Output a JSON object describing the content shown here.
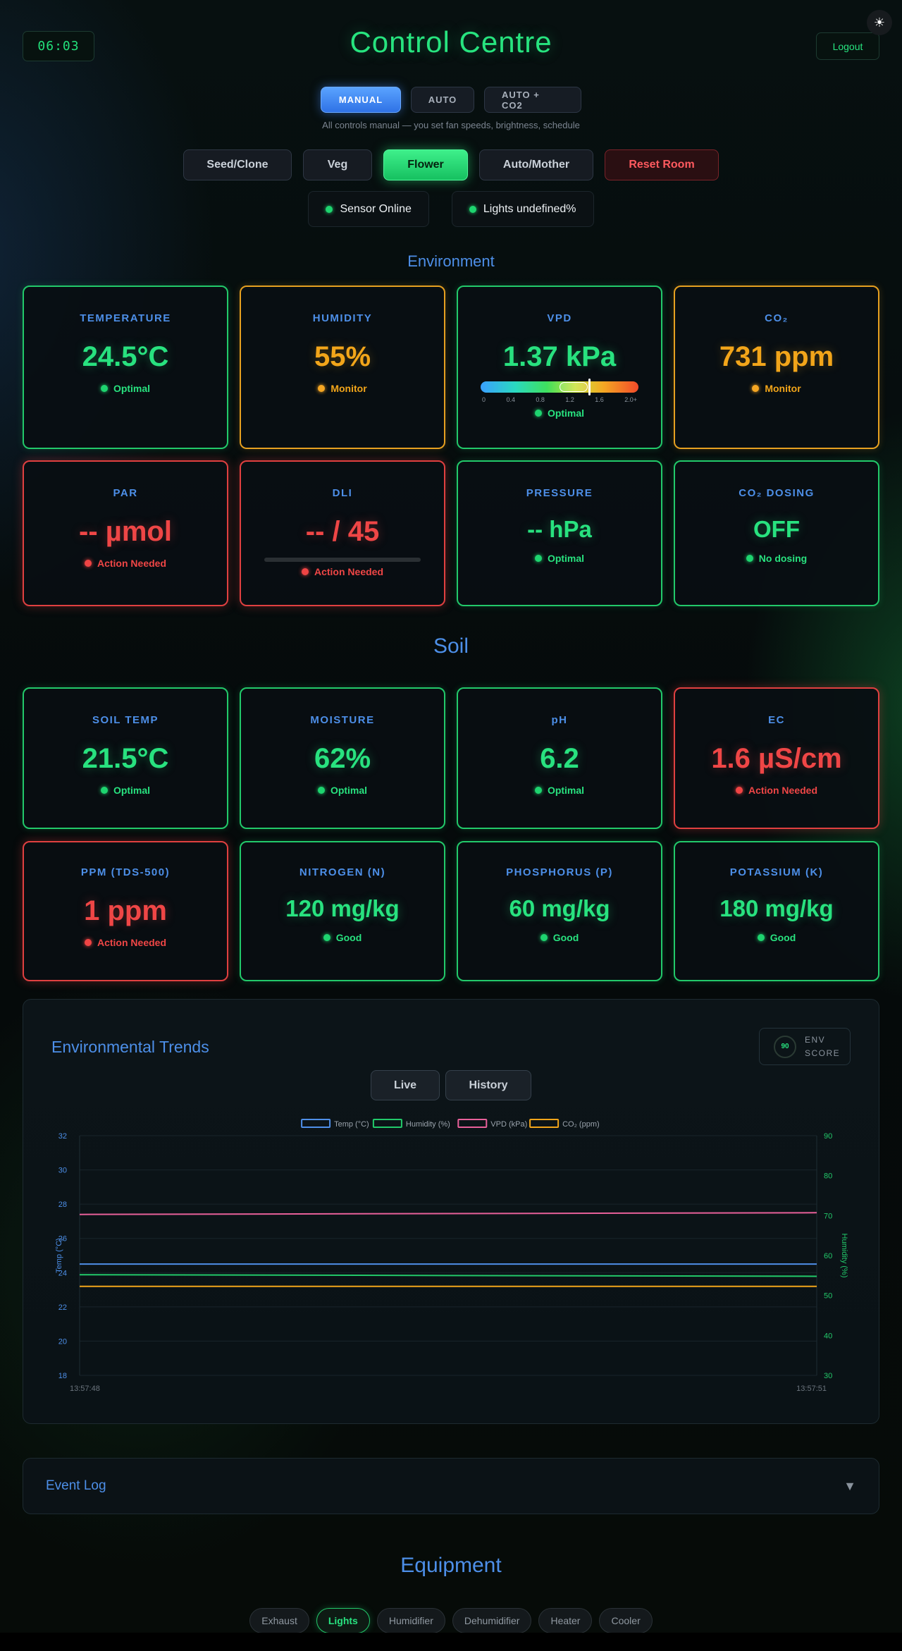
{
  "header": {
    "clock": "06:03",
    "title": "Control Centre",
    "logout_label": "Logout",
    "theme_toggle_icon": "☀"
  },
  "modes": {
    "items": [
      {
        "label": "MANUAL",
        "active": true
      },
      {
        "label": "AUTO",
        "active": false
      },
      {
        "label": "AUTO + CO2",
        "active": false
      }
    ],
    "hint": "All controls manual — you set fan speeds, brightness, schedule"
  },
  "stages": {
    "items": [
      {
        "label": "Seed/Clone"
      },
      {
        "label": "Veg"
      },
      {
        "label": "Flower"
      },
      {
        "label": "Auto/Mother"
      },
      {
        "label": "Reset Room"
      }
    ]
  },
  "status": {
    "sensor": "Sensor Online",
    "lights": "Lights undefined%"
  },
  "environment": {
    "title": "Environment",
    "cards": [
      {
        "label": "TEMPERATURE",
        "value": "24.5°C",
        "status": "Optimal"
      },
      {
        "label": "HUMIDITY",
        "value": "55%",
        "status": "Monitor"
      },
      {
        "label": "VPD",
        "value": "1.37 kPa",
        "status": "Optimal",
        "scale_ticks": [
          "0",
          "0.4",
          "0.8",
          "1.2",
          "1.6",
          "2.0+"
        ],
        "reading": 1.37
      },
      {
        "label": "CO₂",
        "value": "731 ppm",
        "status": "Monitor"
      },
      {
        "label": "PAR",
        "value": "-- µmol",
        "status": "Action Needed"
      },
      {
        "label": "DLI",
        "value": "-- / 45",
        "status": "Action Needed"
      },
      {
        "label": "PRESSURE",
        "value": "-- hPa",
        "status": "Optimal"
      },
      {
        "label": "CO₂ DOSING",
        "value": "OFF",
        "status": "No dosing"
      }
    ]
  },
  "soil": {
    "title": "Soil",
    "cards": [
      {
        "label": "SOIL TEMP",
        "value": "21.5°C",
        "status": "Optimal"
      },
      {
        "label": "MOISTURE",
        "value": "62%",
        "status": "Optimal"
      },
      {
        "label": "pH",
        "value": "6.2",
        "status": "Optimal"
      },
      {
        "label": "EC",
        "value": "1.6 µS/cm",
        "status": "Action Needed"
      },
      {
        "label": "PPM (TDS-500)",
        "value": "1 ppm",
        "status": "Action Needed"
      },
      {
        "label": "NITROGEN (N)",
        "value": "120 mg/kg",
        "status": "Good"
      },
      {
        "label": "PHOSPHORUS (P)",
        "value": "60 mg/kg",
        "status": "Good"
      },
      {
        "label": "POTASSIUM (K)",
        "value": "180 mg/kg",
        "status": "Good"
      }
    ]
  },
  "trends": {
    "title": "Environmental Trends",
    "env_score_value": "90",
    "env_score_label_1": "ENV",
    "env_score_label_2": "SCORE",
    "tabs": [
      {
        "label": "Live"
      },
      {
        "label": "History"
      }
    ]
  },
  "chart_data": {
    "type": "line",
    "x": [
      "13:57:48",
      "13:57:51"
    ],
    "ylabel_left": "Temp (°C)",
    "ylabel_right": "Humidity (%)",
    "ylim_left": [
      18,
      32
    ],
    "yticks_left": [
      "32",
      "30",
      "28",
      "26",
      "24",
      "22",
      "20",
      "18"
    ],
    "ylim_right": [
      30,
      90
    ],
    "yticks_right": [
      "90",
      "80",
      "70",
      "60",
      "50",
      "40",
      "30"
    ],
    "grid": true,
    "legend_placement": "top-center",
    "series": [
      {
        "name": "Temp (°C)",
        "axis": "left",
        "color": "#4f8fe8",
        "values": [
          24.5,
          24.5
        ]
      },
      {
        "name": "Humidity (%)",
        "axis": "right",
        "color": "#22c96a",
        "values": [
          55.2,
          54.8
        ]
      },
      {
        "name": "VPD (kPa)",
        "axis": "left",
        "color": "#e8609a",
        "values": [
          27.4,
          27.5
        ]
      },
      {
        "name": "CO₂ (ppm)",
        "axis": "left",
        "color": "#f2a51a",
        "values": [
          23.2,
          23.2
        ]
      }
    ]
  },
  "eventlog": {
    "title": "Event Log",
    "chevron": "▼"
  },
  "equipment": {
    "title": "Equipment",
    "tabs": [
      {
        "label": "Exhaust"
      },
      {
        "label": "Lights"
      },
      {
        "label": "Humidifier"
      },
      {
        "label": "Dehumidifier"
      },
      {
        "label": "Heater"
      },
      {
        "label": "Cooler"
      }
    ]
  }
}
